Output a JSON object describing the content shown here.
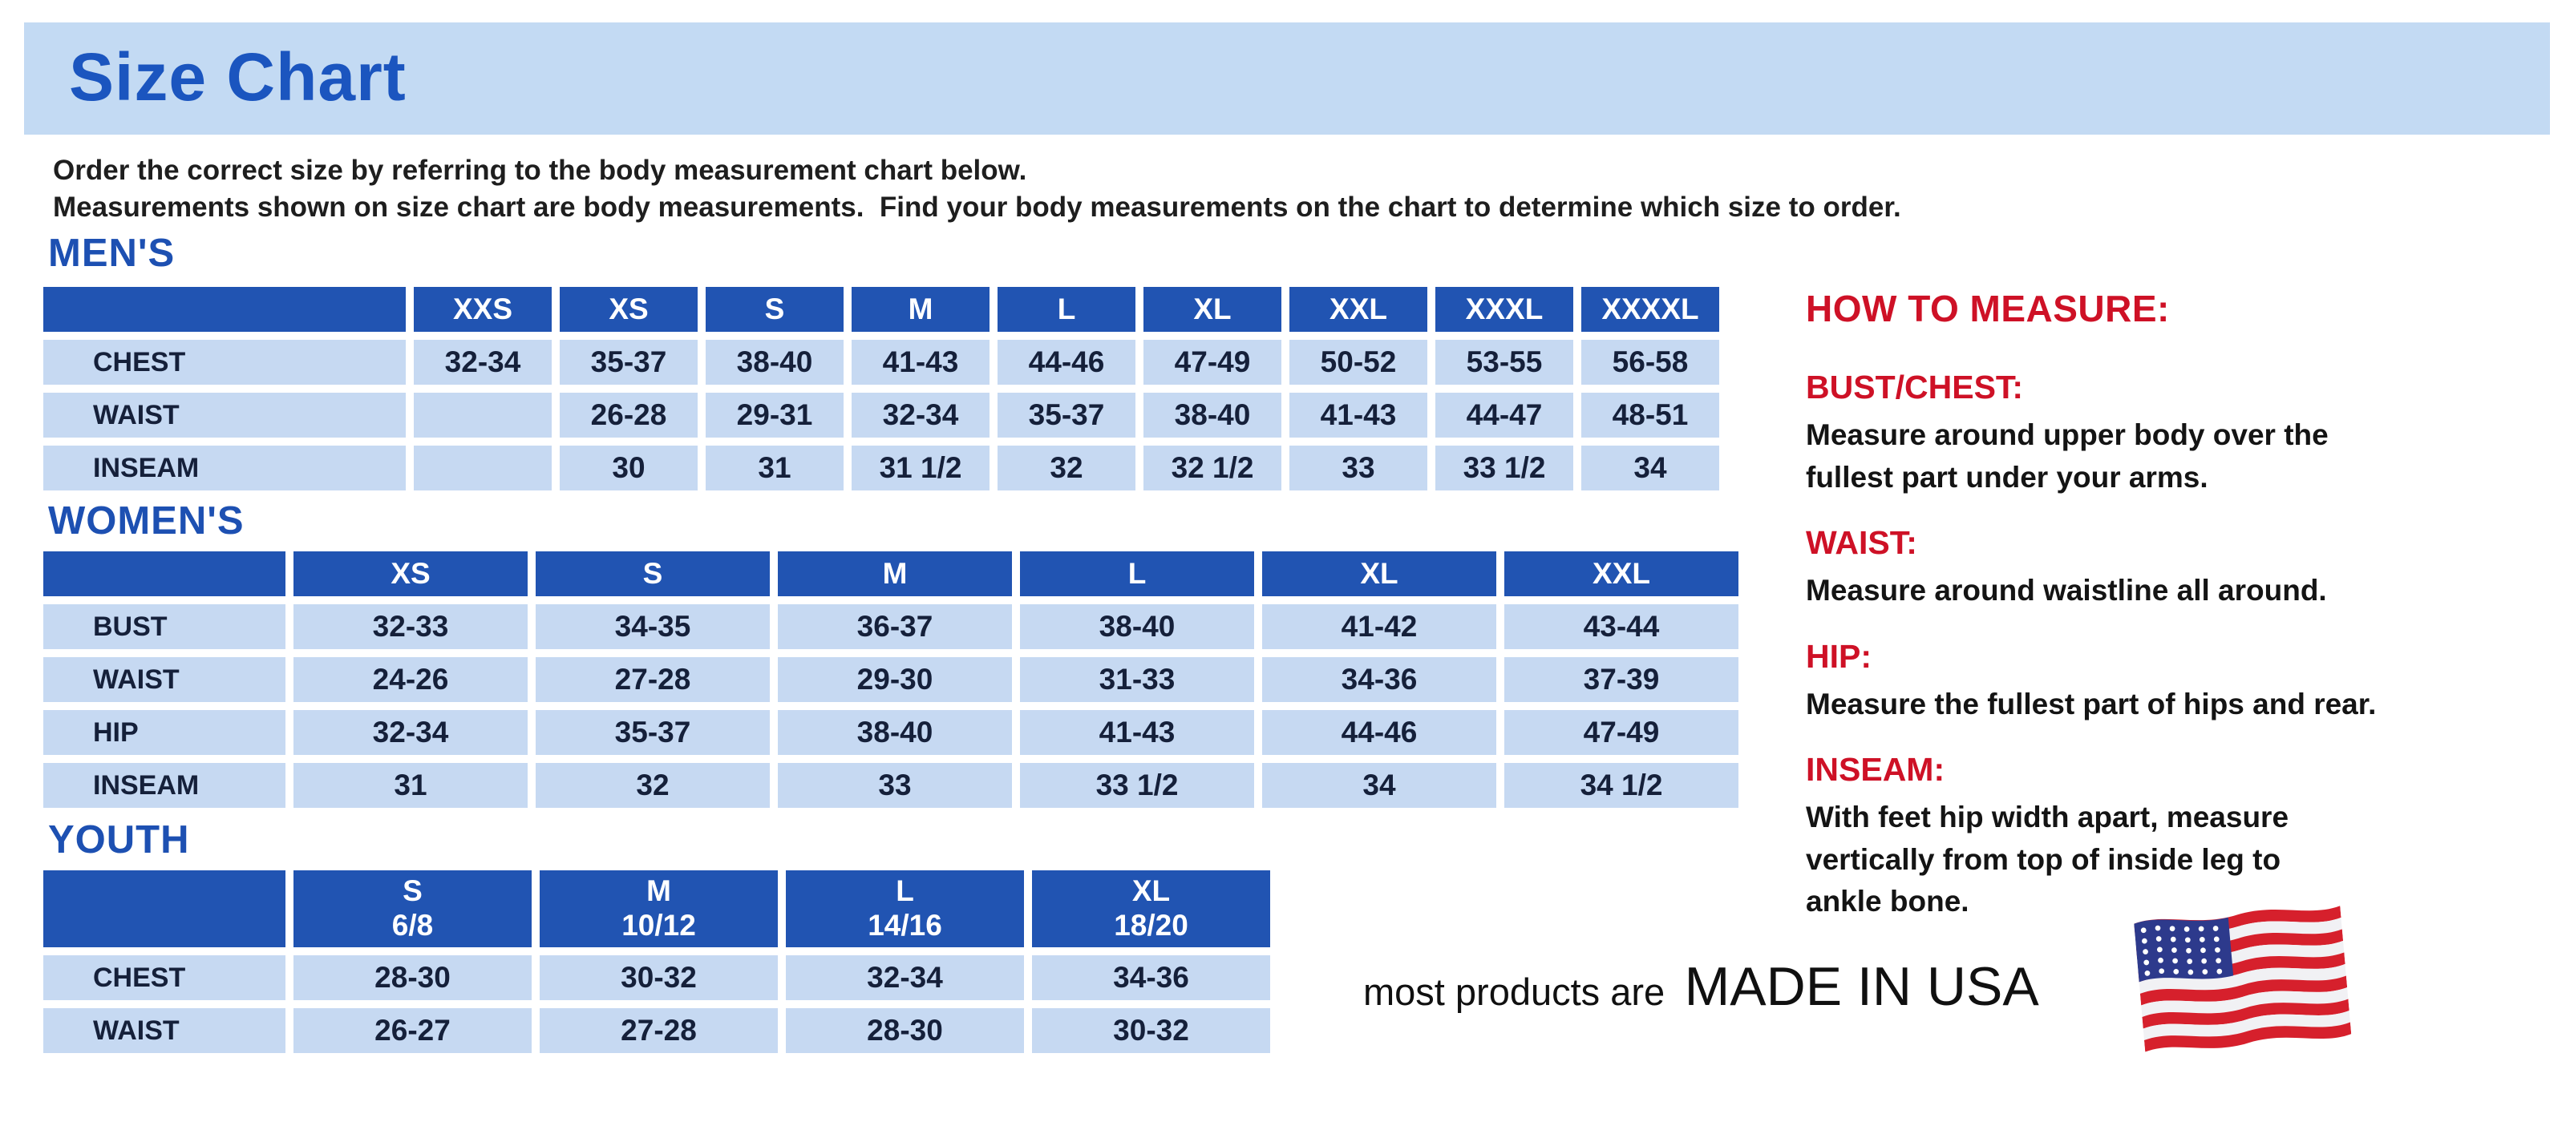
{
  "page": {
    "title": "Size Chart",
    "intro_lines": [
      "Order the correct size by referring to the body measurement chart below.",
      "Measurements shown on size chart are body measurements.  Find your body measurements on the chart to determine which size to order."
    ]
  },
  "tables": {
    "mens": {
      "heading": "MEN'S",
      "columns": [
        "XXS",
        "XS",
        "S",
        "M",
        "L",
        "XL",
        "XXL",
        "XXXL",
        "XXXXL"
      ],
      "rows": [
        {
          "label": "CHEST",
          "values": [
            "32-34",
            "35-37",
            "38-40",
            "41-43",
            "44-46",
            "47-49",
            "50-52",
            "53-55",
            "56-58"
          ]
        },
        {
          "label": "WAIST",
          "values": [
            "",
            "26-28",
            "29-31",
            "32-34",
            "35-37",
            "38-40",
            "41-43",
            "44-47",
            "48-51"
          ]
        },
        {
          "label": "INSEAM",
          "values": [
            "",
            "30",
            "31",
            "31 1/2",
            "32",
            "32 1/2",
            "33",
            "33 1/2",
            "34"
          ]
        }
      ]
    },
    "womens": {
      "heading": "WOMEN'S",
      "columns": [
        "XS",
        "S",
        "M",
        "L",
        "XL",
        "XXL"
      ],
      "rows": [
        {
          "label": "BUST",
          "values": [
            "32-33",
            "34-35",
            "36-37",
            "38-40",
            "41-42",
            "43-44"
          ]
        },
        {
          "label": "WAIST",
          "values": [
            "24-26",
            "27-28",
            "29-30",
            "31-33",
            "34-36",
            "37-39"
          ]
        },
        {
          "label": "HIP",
          "values": [
            "32-34",
            "35-37",
            "38-40",
            "41-43",
            "44-46",
            "47-49"
          ]
        },
        {
          "label": "INSEAM",
          "values": [
            "31",
            "32",
            "33",
            "33 1/2",
            "34",
            "34 1/2"
          ]
        }
      ]
    },
    "youth": {
      "heading": "YOUTH",
      "columns": [
        "S\n6/8",
        "M\n10/12",
        "L\n14/16",
        "XL\n18/20"
      ],
      "rows": [
        {
          "label": "CHEST",
          "values": [
            "28-30",
            "30-32",
            "32-34",
            "34-36"
          ]
        },
        {
          "label": "WAIST",
          "values": [
            "26-27",
            "27-28",
            "28-30",
            "30-32"
          ]
        }
      ]
    }
  },
  "how_to_measure": {
    "heading": "HOW TO MEASURE:",
    "items": [
      {
        "label": "BUST/CHEST:",
        "text": "Measure around upper body over the\nfullest part under your arms."
      },
      {
        "label": "WAIST:",
        "text": "Measure around waistline all around."
      },
      {
        "label": "HIP:",
        "text": "Measure the fullest part of hips and rear."
      },
      {
        "label": "INSEAM:",
        "text": "With feet hip width apart, measure\nvertically from top of inside leg to\nankle bone."
      }
    ]
  },
  "footer": {
    "made_in_prefix": "most products are",
    "made_in_text": "MADE IN USA",
    "flag_icon": "us-flag-icon"
  },
  "colors": {
    "banner_bg": "#c3daf3",
    "title_blue": "#1b55bf",
    "section_heading_blue": "#1d50b2",
    "table_header_blue": "#2154b2",
    "table_cell_blue": "#c6d9f2",
    "table_text_navy": "#15203a",
    "measure_red": "#ce1126",
    "flag_red": "#d6202c",
    "flag_blue": "#2d3a8c"
  }
}
